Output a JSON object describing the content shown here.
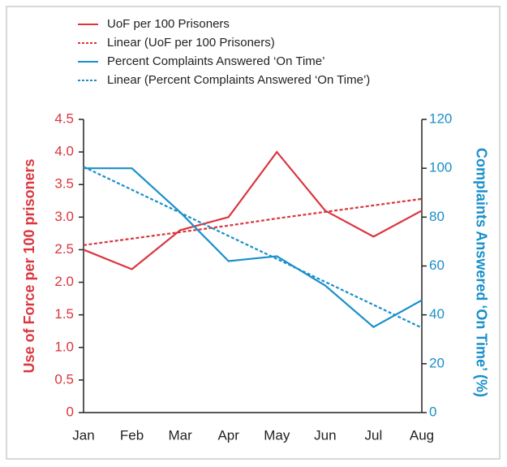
{
  "chart_data": {
    "type": "line",
    "categories": [
      "Jan",
      "Feb",
      "Mar",
      "Apr",
      "May",
      "Jun",
      "Jul",
      "Aug"
    ],
    "ylabel": "Use of Force per 100 prisoners",
    "y2label": "Complaints Answered ‘On Time’ (%)",
    "ylim": [
      0,
      4.5
    ],
    "yticks": [
      0,
      0.5,
      {
        "value": 1,
        "label": "1.0"
      },
      1.5,
      {
        "value": 2,
        "label": "2.0"
      },
      2.5,
      {
        "value": 3,
        "label": "3.0"
      },
      3.5,
      {
        "value": 4,
        "label": "4.0"
      },
      4.5
    ],
    "y2lim": [
      0,
      120
    ],
    "y2ticks": [
      0,
      20,
      40,
      60,
      80,
      100,
      120
    ],
    "ycolor": "#d9363e",
    "y2color": "#1a8fc9",
    "series": [
      {
        "name": "UoF per 100 Prisoners",
        "color": "#d9363e",
        "style": "solid",
        "values": [
          2.5,
          2.2,
          2.8,
          3.0,
          4.0,
          3.1,
          2.7,
          3.1
        ]
      },
      {
        "name": "Linear (UoF per 100 Prisoners)",
        "color": "#d9363e",
        "style": "dashed",
        "values": [
          2.57,
          2.67,
          2.77,
          2.87,
          2.98,
          3.08,
          3.18,
          3.28
        ]
      },
      {
        "name": "Percent Complaints Answered ‘On Time’",
        "color": "#1a8fc9",
        "style": "solid",
        "axis": "y2",
        "values": [
          100,
          100,
          82,
          62,
          64,
          52,
          35,
          46
        ]
      },
      {
        "name": "Linear (Percent Complaints Answered ‘On Time’)",
        "color": "#1a8fc9",
        "style": "dashed",
        "axis": "y2",
        "values": [
          100.6,
          91.2,
          81.8,
          72.3,
          62.9,
          53.5,
          44.1,
          34.7
        ]
      }
    ]
  }
}
